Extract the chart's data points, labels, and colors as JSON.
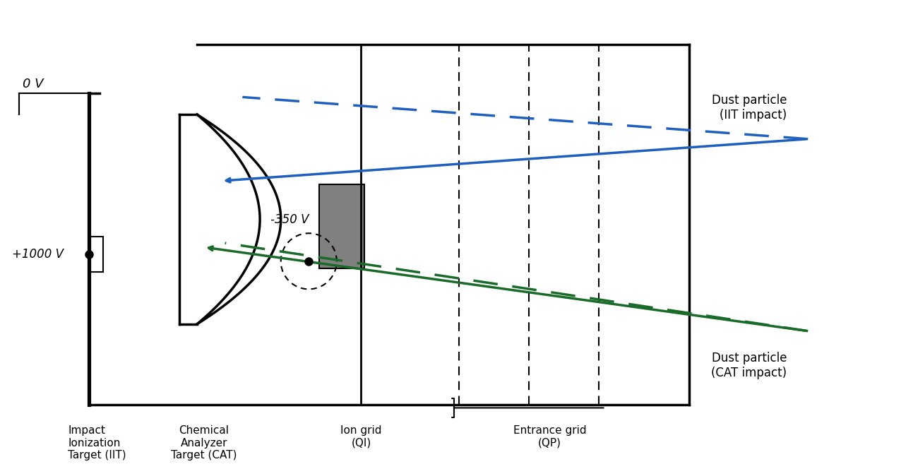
{
  "bg_color": "#ffffff",
  "black": "#000000",
  "blue": "#1f5fbd",
  "green": "#1a6b2a",
  "gray": "#808080",
  "fig_width": 12.76,
  "fig_height": 6.64,
  "label_IIT": "Impact\nIonization\nTarget (IIT)",
  "label_CAT": "Chemical\nAnalyzer\nTarget (CAT)",
  "label_ion_grid": "Ion grid\n(QI)",
  "label_entrance_grid": "Entrance grid\n(QP)",
  "label_dust_IIT": "Dust particle\n(IIT impact)",
  "label_dust_CAT": "Dust particle\n(CAT impact)",
  "label_0V": "0 V",
  "label_1000V": "+1000 V",
  "label_350V": "-350 V"
}
